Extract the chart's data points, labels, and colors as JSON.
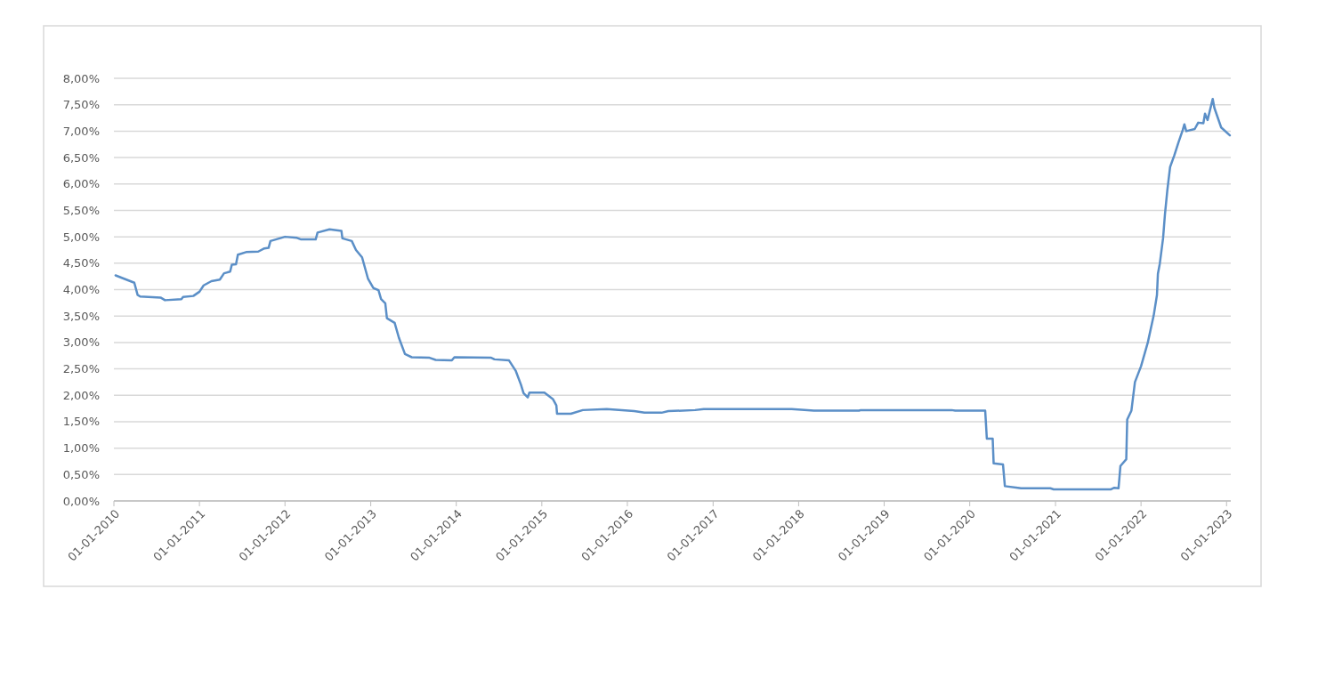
{
  "chart_data": {
    "type": "line",
    "grid": "y",
    "line_style": "solid",
    "x": [
      "2010-01-08",
      "2010-03-29",
      "2010-04-12",
      "2010-04-23",
      "2010-07-19",
      "2010-08-07",
      "2010-10-16",
      "2010-10-23",
      "2010-12-06",
      "2011-01-01",
      "2011-01-19",
      "2011-02-21",
      "2011-03-29",
      "2011-04-16",
      "2011-05-12",
      "2011-05-19",
      "2011-06-06",
      "2011-06-14",
      "2011-07-19",
      "2011-09-09",
      "2011-10-05",
      "2011-10-23",
      "2011-10-31",
      "2012-01-01",
      "2012-02-21",
      "2012-03-10",
      "2012-05-11",
      "2012-05-19",
      "2012-07-09",
      "2012-08-29",
      "2012-09-02",
      "2012-10-12",
      "2012-10-30",
      "2012-11-25",
      "2012-12-20",
      "2013-01-12",
      "2013-02-03",
      "2013-02-14",
      "2013-03-04",
      "2013-03-11",
      "2013-04-13",
      "2013-05-01",
      "2013-05-27",
      "2013-06-25",
      "2013-09-09",
      "2013-10-05",
      "2013-12-13",
      "2013-12-24",
      "2014-05-30",
      "2014-06-13",
      "2014-08-14",
      "2014-09-12",
      "2014-10-04",
      "2014-10-15",
      "2014-11-02",
      "2014-11-09",
      "2015-01-12",
      "2015-02-17",
      "2015-03-04",
      "2015-03-07",
      "2015-05-05",
      "2015-06-25",
      "2015-10-05",
      "2016-01-30",
      "2016-03-14",
      "2016-05-26",
      "2016-06-24",
      "2016-10-16",
      "2016-11-22",
      "2017-12-02",
      "2018-03-07",
      "2018-09-16",
      "2018-09-23",
      "2019-10-16",
      "2019-10-31",
      "2020-03-07",
      "2020-03-14",
      "2020-04-08",
      "2020-04-12",
      "2020-05-22",
      "2020-05-30",
      "2020-07-24",
      "2020-08-07",
      "2020-12-10",
      "2020-12-24",
      "2021-08-26",
      "2021-09-09",
      "2021-09-27",
      "2021-10-05",
      "2021-10-30",
      "2021-11-03",
      "2021-11-21",
      "2021-12-06",
      "2022-01-01",
      "2022-01-30",
      "2022-02-24",
      "2022-03-10",
      "2022-03-14",
      "2022-03-22",
      "2022-04-05",
      "2022-04-13",
      "2022-04-23",
      "2022-05-05",
      "2022-05-23",
      "2022-06-10",
      "2022-06-28",
      "2022-07-05",
      "2022-07-13",
      "2022-08-18",
      "2022-09-02",
      "2022-09-24",
      "2022-10-01",
      "2022-10-12",
      "2022-11-03",
      "2022-11-10",
      "2022-12-09",
      "2023-01-15"
    ],
    "series": [
      {
        "color": "#5b8fc7",
        "values": [
          4.27,
          4.13,
          3.9,
          3.87,
          3.85,
          3.8,
          3.82,
          3.86,
          3.88,
          3.96,
          4.08,
          4.16,
          4.19,
          4.31,
          4.34,
          4.47,
          4.48,
          4.66,
          4.71,
          4.72,
          4.78,
          4.79,
          4.92,
          5.0,
          4.98,
          4.95,
          4.95,
          5.08,
          5.14,
          5.11,
          4.97,
          4.92,
          4.75,
          4.61,
          4.21,
          4.03,
          3.99,
          3.82,
          3.74,
          3.46,
          3.37,
          3.09,
          2.78,
          2.72,
          2.71,
          2.67,
          2.66,
          2.72,
          2.71,
          2.68,
          2.66,
          2.46,
          2.2,
          2.04,
          1.96,
          2.05,
          2.05,
          1.93,
          1.81,
          1.65,
          1.65,
          1.72,
          1.74,
          1.7,
          1.67,
          1.67,
          1.7,
          1.72,
          1.74,
          1.74,
          1.71,
          1.71,
          1.72,
          1.72,
          1.71,
          1.71,
          1.18,
          1.18,
          0.71,
          0.69,
          0.28,
          0.25,
          0.24,
          0.24,
          0.22,
          0.22,
          0.25,
          0.24,
          0.66,
          0.79,
          1.54,
          1.71,
          2.25,
          2.55,
          3.0,
          3.51,
          3.9,
          4.3,
          4.49,
          4.97,
          5.42,
          5.87,
          6.32,
          6.54,
          6.79,
          7.02,
          7.13,
          7.0,
          7.04,
          7.16,
          7.15,
          7.33,
          7.21,
          7.61,
          7.44,
          7.07,
          6.92
        ]
      }
    ],
    "xlim": [
      "2010-01-01",
      "2023-01-19"
    ],
    "xticks": [
      {
        "value": "2010-01-01",
        "label": "01-01-2010"
      },
      {
        "value": "2011-01-01",
        "label": "01-01-2011"
      },
      {
        "value": "2012-01-01",
        "label": "01-01-2012"
      },
      {
        "value": "2013-01-01",
        "label": "01-01-2013"
      },
      {
        "value": "2014-01-01",
        "label": "01-01-2014"
      },
      {
        "value": "2015-01-01",
        "label": "01-01-2015"
      },
      {
        "value": "2016-01-01",
        "label": "01-01-2016"
      },
      {
        "value": "2017-01-01",
        "label": "01-01-2017"
      },
      {
        "value": "2018-01-01",
        "label": "01-01-2018"
      },
      {
        "value": "2019-01-01",
        "label": "01-01-2019"
      },
      {
        "value": "2020-01-01",
        "label": "01-01-2020"
      },
      {
        "value": "2021-01-01",
        "label": "01-01-2021"
      },
      {
        "value": "2022-01-01",
        "label": "01-01-2022"
      },
      {
        "value": "2023-01-01",
        "label": "01-01-2023"
      }
    ],
    "ylim": [
      0,
      8
    ],
    "yticks": [
      {
        "value": 0,
        "label": "0,00%"
      },
      {
        "value": 0.5,
        "label": "0,50%"
      },
      {
        "value": 1,
        "label": "1,00%"
      },
      {
        "value": 1.5,
        "label": "1,50%"
      },
      {
        "value": 2,
        "label": "2,00%"
      },
      {
        "value": 2.5,
        "label": "2,50%"
      },
      {
        "value": 3,
        "label": "3,00%"
      },
      {
        "value": 3.5,
        "label": "3,50%"
      },
      {
        "value": 4,
        "label": "4,00%"
      },
      {
        "value": 4.5,
        "label": "4,50%"
      },
      {
        "value": 5,
        "label": "5,00%"
      },
      {
        "value": 5.5,
        "label": "5,50%"
      },
      {
        "value": 6,
        "label": "6,00%"
      },
      {
        "value": 6.5,
        "label": "6,50%"
      },
      {
        "value": 7,
        "label": "7,00%"
      },
      {
        "value": 7.5,
        "label": "7,50%"
      },
      {
        "value": 8,
        "label": "8,00%"
      }
    ]
  }
}
